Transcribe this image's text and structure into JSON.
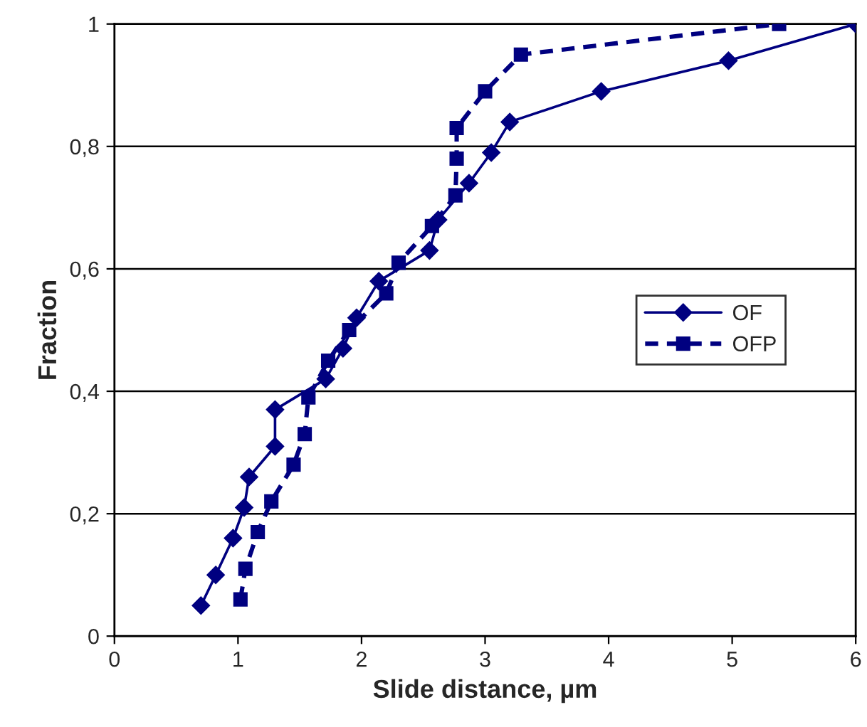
{
  "chart_data": {
    "type": "line",
    "xlabel": "Slide distance, µm",
    "ylabel": "Fraction",
    "xlim": [
      0,
      6
    ],
    "xticks": [
      0,
      1,
      2,
      3,
      4,
      5,
      6
    ],
    "ylim": [
      0,
      1
    ],
    "yticks": [
      0,
      {
        "value": 0.2,
        "label": "0,2"
      },
      {
        "value": 0.4,
        "label": "0,4"
      },
      {
        "value": 0.6,
        "label": "0,6"
      },
      {
        "value": 0.8,
        "label": "0,8"
      },
      1
    ],
    "grid": "y",
    "legend": "right",
    "series": [
      {
        "name": "OF",
        "color": "#000080",
        "marker": "diamond",
        "line_style": "solid",
        "x": [
          0.7,
          0.82,
          0.96,
          1.05,
          1.09,
          1.3,
          1.3,
          1.71,
          1.85,
          1.96,
          2.14,
          2.55,
          2.62,
          2.87,
          3.05,
          3.2,
          3.94,
          4.97,
          6
        ],
        "values": [
          0.05,
          0.1,
          0.16,
          0.21,
          0.26,
          0.31,
          0.37,
          0.42,
          0.47,
          0.52,
          0.58,
          0.63,
          0.68,
          0.74,
          0.79,
          0.84,
          0.89,
          0.94,
          1
        ]
      },
      {
        "name": "OFP",
        "color": "#000080",
        "marker": "square",
        "line_style": "dashed",
        "x": [
          1.02,
          1.06,
          1.16,
          1.27,
          1.45,
          1.54,
          1.57,
          1.73,
          1.9,
          2.2,
          2.3,
          2.57,
          2.76,
          2.77,
          2.77,
          3.0,
          3.29,
          5.38
        ],
        "values": [
          0.06,
          0.11,
          0.17,
          0.22,
          0.28,
          0.33,
          0.39,
          0.45,
          0.5,
          0.56,
          0.61,
          0.67,
          0.72,
          0.78,
          0.83,
          0.89,
          0.95,
          1
        ]
      }
    ]
  }
}
